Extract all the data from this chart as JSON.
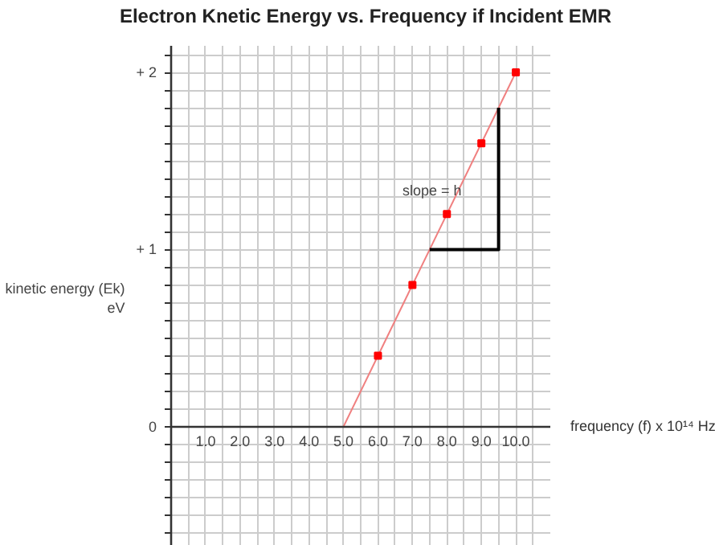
{
  "chart_data": {
    "type": "line",
    "title": "Electron Knetic Energy vs. Frequency if Incident EMR",
    "xlabel": "frequency (f) x 10¹⁴ Hz",
    "ylabel": "kinetic energy (Ek)\neV",
    "xlim": [
      0,
      11
    ],
    "ylim": [
      -0.7,
      2.15
    ],
    "xticks": [
      {
        "value": 0.5,
        "label": null
      },
      {
        "value": 1,
        "label": "1.0"
      },
      {
        "value": 1.5,
        "label": null
      },
      {
        "value": 2,
        "label": "2.0"
      },
      {
        "value": 2.5,
        "label": null
      },
      {
        "value": 3,
        "label": "3.0"
      },
      {
        "value": 3.5,
        "label": null
      },
      {
        "value": 4,
        "label": "4.0"
      },
      {
        "value": 4.5,
        "label": null
      },
      {
        "value": 5,
        "label": "5.0"
      },
      {
        "value": 5.5,
        "label": null
      },
      {
        "value": 6,
        "label": "6.0"
      },
      {
        "value": 6.5,
        "label": null
      },
      {
        "value": 7,
        "label": "7.0"
      },
      {
        "value": 7.5,
        "label": null
      },
      {
        "value": 8,
        "label": "8.0"
      },
      {
        "value": 8.5,
        "label": null
      },
      {
        "value": 9,
        "label": "9.0"
      },
      {
        "value": 9.5,
        "label": null
      },
      {
        "value": 10,
        "label": "10.0"
      },
      {
        "value": 10.5,
        "label": null
      }
    ],
    "yticks": [
      {
        "value": -0.7,
        "label": null
      },
      {
        "value": -0.6,
        "label": null
      },
      {
        "value": -0.5,
        "label": null
      },
      {
        "value": -0.4,
        "label": null
      },
      {
        "value": -0.3,
        "label": null
      },
      {
        "value": -0.2,
        "label": null
      },
      {
        "value": -0.1,
        "label": null
      },
      {
        "value": 0,
        "label": "0"
      },
      {
        "value": 0.1,
        "label": null
      },
      {
        "value": 0.2,
        "label": null
      },
      {
        "value": 0.3,
        "label": null
      },
      {
        "value": 0.4,
        "label": null
      },
      {
        "value": 0.5,
        "label": null
      },
      {
        "value": 0.6,
        "label": null
      },
      {
        "value": 0.7,
        "label": null
      },
      {
        "value": 0.8,
        "label": null
      },
      {
        "value": 0.9,
        "label": null
      },
      {
        "value": 1,
        "label": "+ 1"
      },
      {
        "value": 1.1,
        "label": null
      },
      {
        "value": 1.2,
        "label": null
      },
      {
        "value": 1.3,
        "label": null
      },
      {
        "value": 1.4,
        "label": null
      },
      {
        "value": 1.5,
        "label": null
      },
      {
        "value": 1.6,
        "label": null
      },
      {
        "value": 1.7,
        "label": null
      },
      {
        "value": 1.8,
        "label": null
      },
      {
        "value": 1.9,
        "label": null
      },
      {
        "value": 2,
        "label": "+ 2"
      },
      {
        "value": 2.1,
        "label": null
      }
    ],
    "grid": true,
    "line_style": "solid",
    "series": [
      {
        "color": "#f08080",
        "x": [
          5,
          10
        ],
        "values": [
          0,
          2
        ],
        "marker": "none"
      },
      {
        "type": "scatter",
        "color": "#ff0000",
        "x": [
          6,
          7,
          8,
          9,
          10
        ],
        "values": [
          0.4,
          0.8,
          1.2,
          1.6,
          2.0
        ],
        "marker": "square"
      },
      {
        "color": "#000000",
        "x": [
          7.5,
          9.5,
          9.5
        ],
        "values": [
          1,
          1,
          1.8
        ],
        "marker": "none"
      }
    ],
    "annotations": [
      "slope = h"
    ]
  }
}
